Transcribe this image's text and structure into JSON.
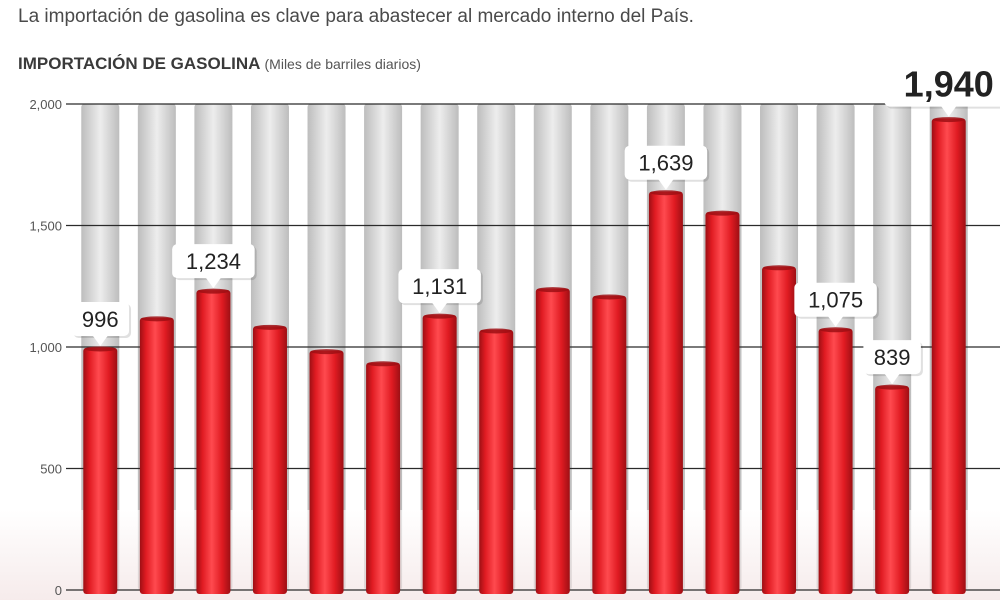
{
  "header": {
    "subtitle": "La importación de gasolina es clave para abastecer al mercado interno del País.",
    "title": "IMPORTACIÓN DE GASOLINA",
    "unit": "(Miles de barriles diarios)"
  },
  "colors": {
    "bar": "#e01b22",
    "bar_highlight": "#ff4a4f",
    "bar_shadow": "#9e0f14",
    "stripe": "#d2d2d2",
    "gridline": "#2b2b2b",
    "label_box": "#ffffff",
    "label_text": "#222222"
  },
  "chart_data": {
    "type": "bar",
    "title": "IMPORTACIÓN DE GASOLINA",
    "ylabel": "(Miles de barriles diarios)",
    "xlabel": "",
    "ylim": [
      0,
      2000
    ],
    "yticks": [
      0,
      500,
      1000,
      1500,
      2000
    ],
    "ytick_labels": [
      "0",
      "500",
      "1,000",
      "1,500",
      "2,000"
    ],
    "grid": true,
    "values": [
      996,
      1120,
      1234,
      1085,
      985,
      935,
      1131,
      1070,
      1240,
      1210,
      1639,
      1555,
      1330,
      1075,
      839,
      1940
    ],
    "data_labels": [
      {
        "index": 0,
        "text": "996"
      },
      {
        "index": 2,
        "text": "1,234"
      },
      {
        "index": 6,
        "text": "1,131"
      },
      {
        "index": 10,
        "text": "1,639"
      },
      {
        "index": 13,
        "text": "1,075"
      },
      {
        "index": 14,
        "text": "839"
      },
      {
        "index": 15,
        "text": "1,940",
        "emphasis": true
      }
    ]
  }
}
